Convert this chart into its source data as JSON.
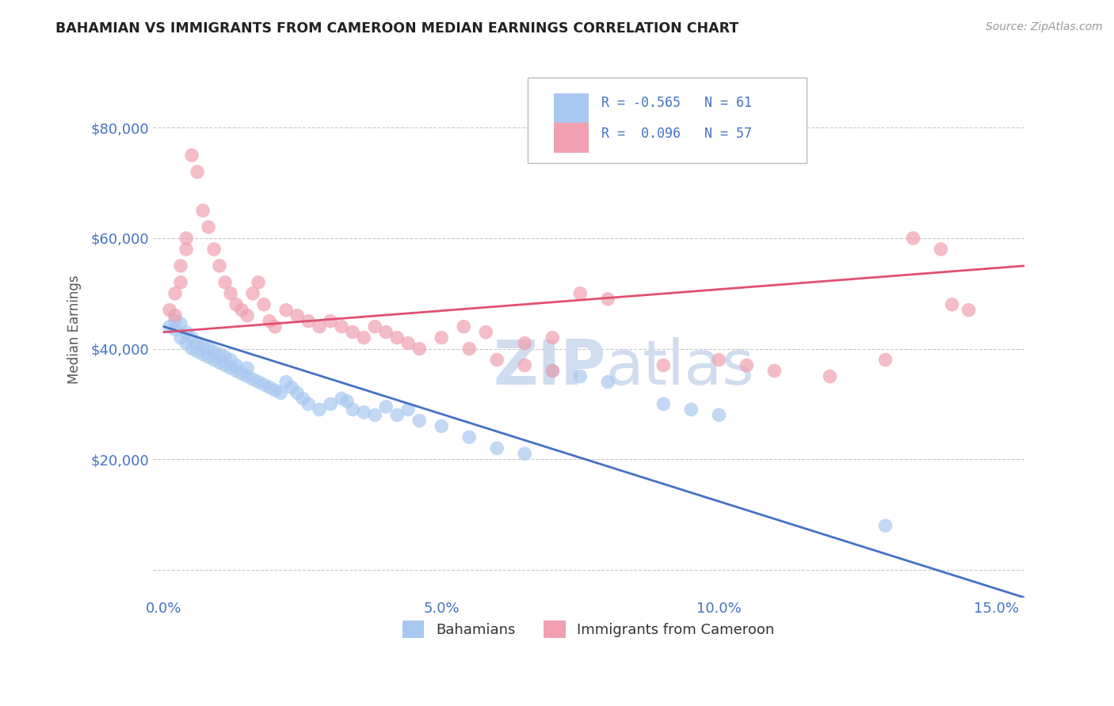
{
  "title": "BAHAMIAN VS IMMIGRANTS FROM CAMEROON MEDIAN EARNINGS CORRELATION CHART",
  "source": "Source: ZipAtlas.com",
  "ylabel": "Median Earnings",
  "xlim": [
    -0.002,
    0.155
  ],
  "ylim": [
    -5000,
    92000
  ],
  "yticks": [
    0,
    20000,
    40000,
    60000,
    80000
  ],
  "ytick_labels": [
    "",
    "$20,000",
    "$40,000",
    "$60,000",
    "$80,000"
  ],
  "xticks": [
    0.0,
    0.05,
    0.1,
    0.15
  ],
  "xtick_labels": [
    "0.0%",
    "5.0%",
    "10.0%",
    "15.0%"
  ],
  "legend_R1": "-0.565",
  "legend_N1": "61",
  "legend_R2": "0.096",
  "legend_N2": "57",
  "color_blue": "#A8C8F0",
  "color_pink": "#F0A0B0",
  "color_blue_line": "#4472C4",
  "color_pink_line": "#E05070",
  "color_title": "#222222",
  "color_axis_labels": "#4472C4",
  "color_grid": "#BBBBBB",
  "watermark_color": "#D0DCF0",
  "blue_trend_x0": 0.0,
  "blue_trend_y0": 44000,
  "blue_trend_x1": 0.155,
  "blue_trend_y1": -5000,
  "pink_trend_x0": 0.0,
  "pink_trend_y0": 43000,
  "pink_trend_x1": 0.155,
  "pink_trend_y1": 55000,
  "blue_scatter_x": [
    0.001,
    0.002,
    0.002,
    0.003,
    0.003,
    0.004,
    0.004,
    0.005,
    0.005,
    0.006,
    0.006,
    0.007,
    0.007,
    0.008,
    0.008,
    0.009,
    0.009,
    0.01,
    0.01,
    0.011,
    0.011,
    0.012,
    0.012,
    0.013,
    0.013,
    0.014,
    0.015,
    0.015,
    0.016,
    0.017,
    0.018,
    0.019,
    0.02,
    0.021,
    0.022,
    0.023,
    0.024,
    0.025,
    0.026,
    0.028,
    0.03,
    0.032,
    0.033,
    0.034,
    0.036,
    0.038,
    0.04,
    0.042,
    0.044,
    0.046,
    0.05,
    0.055,
    0.06,
    0.065,
    0.07,
    0.075,
    0.08,
    0.09,
    0.095,
    0.1,
    0.13
  ],
  "blue_scatter_y": [
    44000,
    43500,
    45000,
    42000,
    44500,
    41000,
    43000,
    40000,
    42000,
    39500,
    41000,
    39000,
    40500,
    38500,
    40000,
    38000,
    39500,
    37500,
    39000,
    37000,
    38500,
    36500,
    38000,
    36000,
    37000,
    35500,
    36500,
    35000,
    34500,
    34000,
    33500,
    33000,
    32500,
    32000,
    34000,
    33000,
    32000,
    31000,
    30000,
    29000,
    30000,
    31000,
    30500,
    29000,
    28500,
    28000,
    29500,
    28000,
    29000,
    27000,
    26000,
    24000,
    22000,
    21000,
    36000,
    35000,
    34000,
    30000,
    29000,
    28000,
    8000
  ],
  "pink_scatter_x": [
    0.001,
    0.002,
    0.002,
    0.003,
    0.003,
    0.004,
    0.004,
    0.005,
    0.006,
    0.007,
    0.008,
    0.009,
    0.01,
    0.011,
    0.012,
    0.013,
    0.014,
    0.015,
    0.016,
    0.017,
    0.018,
    0.019,
    0.02,
    0.022,
    0.024,
    0.026,
    0.028,
    0.03,
    0.032,
    0.034,
    0.036,
    0.038,
    0.04,
    0.042,
    0.044,
    0.046,
    0.05,
    0.054,
    0.058,
    0.065,
    0.07,
    0.075,
    0.08,
    0.055,
    0.06,
    0.065,
    0.07,
    0.09,
    0.1,
    0.105,
    0.11,
    0.12,
    0.13,
    0.135,
    0.14,
    0.142,
    0.145
  ],
  "pink_scatter_y": [
    47000,
    50000,
    46000,
    55000,
    52000,
    60000,
    58000,
    75000,
    72000,
    65000,
    62000,
    58000,
    55000,
    52000,
    50000,
    48000,
    47000,
    46000,
    50000,
    52000,
    48000,
    45000,
    44000,
    47000,
    46000,
    45000,
    44000,
    45000,
    44000,
    43000,
    42000,
    44000,
    43000,
    42000,
    41000,
    40000,
    42000,
    44000,
    43000,
    41000,
    42000,
    50000,
    49000,
    40000,
    38000,
    37000,
    36000,
    37000,
    38000,
    37000,
    36000,
    35000,
    38000,
    60000,
    58000,
    48000,
    47000
  ]
}
